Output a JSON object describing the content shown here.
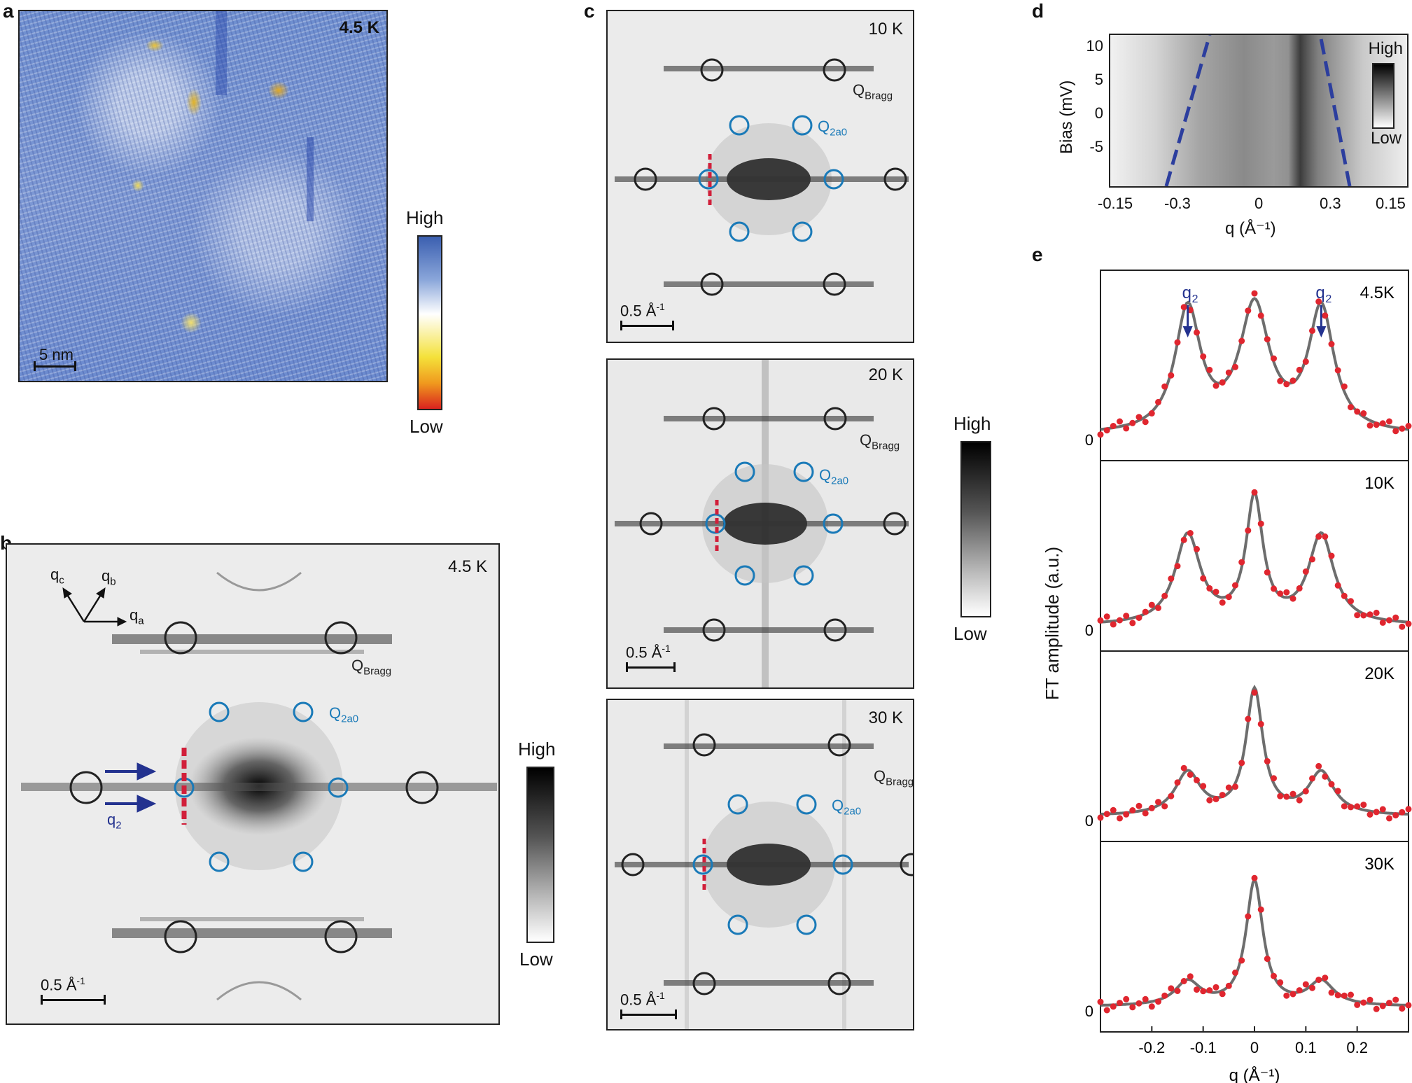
{
  "panels": {
    "a": {
      "label": "a",
      "temperature": "4.5 K",
      "scalebar": "5 nm",
      "colorbar": {
        "high": "High",
        "low": "Low",
        "colors": [
          "#3b5fb0",
          "#ffffff",
          "#f4e13a",
          "#d9231f"
        ]
      }
    },
    "b": {
      "label": "b",
      "temperature": "4.5 K",
      "scalebar": "0.5 Å",
      "scalebar_sup": "-1",
      "axes": {
        "qa": "q",
        "qa_sub": "a",
        "qb": "q",
        "qb_sub": "b",
        "qc": "q",
        "qc_sub": "c"
      },
      "bragg": "Q",
      "bragg_sub": "Bragg",
      "q2a0": "Q",
      "q2a0_sub": "2a0",
      "q2": "q",
      "q2_sub": "2",
      "colorbar": {
        "high": "High",
        "low": "Low"
      }
    },
    "c": {
      "label": "c",
      "maps": [
        {
          "temperature": "10 K",
          "scalebar": "0.5 Å",
          "scalebar_sup": "-1"
        },
        {
          "temperature": "20 K",
          "scalebar": "0.5 Å",
          "scalebar_sup": "-1"
        },
        {
          "temperature": "30 K",
          "scalebar": "0.5 Å",
          "scalebar_sup": "-1"
        }
      ],
      "bragg": "Q",
      "bragg_sub": "Bragg",
      "q2a0": "Q",
      "q2a0_sub": "2a0",
      "colorbar": {
        "high": "High",
        "low": "Low"
      }
    },
    "d": {
      "label": "d",
      "ylabel": "Bias (mV)",
      "xlabel": "q (Å⁻¹)",
      "yticks": [
        "10",
        "5",
        "0",
        "-5"
      ],
      "xticks": [
        "-0.15",
        "-0.3",
        "0",
        "0.3",
        "0.15"
      ],
      "colorbar": {
        "high": "High",
        "low": "Low"
      }
    },
    "e": {
      "label": "e",
      "ylabel": "FT amplitude (a.u.)",
      "xlabel": "q (Å⁻¹)",
      "xticks": [
        "-0.2",
        "-0.1",
        "0",
        "0.1",
        "0.2"
      ],
      "zero": "0",
      "q2": "q",
      "q2_sub": "2",
      "colors": {
        "data": "#e0262f",
        "fit": "#6d6d6d",
        "arrow": "#23328f"
      }
    }
  },
  "chart_data": [
    {
      "type": "heatmap",
      "panel": "d",
      "xlabel": "q (Å⁻¹)",
      "ylabel": "Bias (mV)",
      "xlim": [
        -0.4,
        0.4
      ],
      "ylim": [
        -5,
        12
      ],
      "xtick_labels": [
        "-0.15",
        "-0.3",
        "0",
        "0.3",
        "0.15"
      ],
      "ytick_labels": [
        "10",
        "5",
        "0",
        "-5"
      ],
      "dispersion_lines": [
        {
          "bias": [
            -5,
            12
          ],
          "q": [
            -0.36,
            -0.26
          ]
        },
        {
          "bias": [
            -5,
            12
          ],
          "q": [
            0.36,
            0.26
          ]
        }
      ]
    },
    {
      "type": "scatter",
      "panel": "e",
      "xlabel": "q (Å⁻¹)",
      "ylabel": "FT amplitude (a.u.)",
      "xlim": [
        -0.3,
        0.3
      ],
      "xtick_labels": [
        "-0.2",
        "-0.1",
        "0",
        "0.1",
        "0.2"
      ],
      "series": [
        {
          "name": "4.5K",
          "peak_q": [
            -0.13,
            0,
            0.13
          ],
          "peak_amp": [
            0.87,
            0.88,
            0.87
          ],
          "fit": "lorentzian_sum"
        },
        {
          "name": "10K",
          "peak_q": [
            -0.13,
            0,
            0.13
          ],
          "peak_amp": [
            0.63,
            0.88,
            0.63
          ],
          "fit": "lorentzian_sum"
        },
        {
          "name": "20K",
          "peak_q": [
            -0.13,
            0,
            0.13
          ],
          "peak_amp": [
            0.3,
            0.88,
            0.3
          ],
          "fit": "lorentzian_sum"
        },
        {
          "name": "30K",
          "peak_q": [
            -0.13,
            0,
            0.13
          ],
          "peak_amp": [
            0.17,
            0.88,
            0.17
          ],
          "fit": "lorentzian_sum"
        }
      ]
    }
  ]
}
